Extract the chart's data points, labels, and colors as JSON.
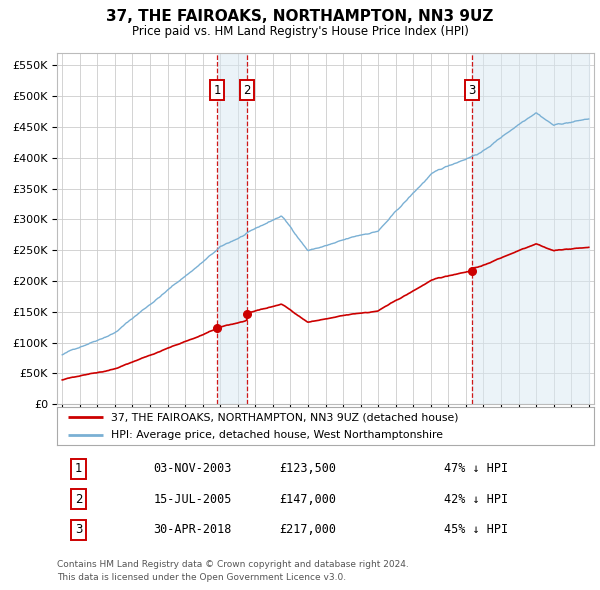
{
  "title": "37, THE FAIROAKS, NORTHAMPTON, NN3 9UZ",
  "subtitle": "Price paid vs. HM Land Registry's House Price Index (HPI)",
  "red_label": "37, THE FAIROAKS, NORTHAMPTON, NN3 9UZ (detached house)",
  "blue_label": "HPI: Average price, detached house, West Northamptonshire",
  "footer1": "Contains HM Land Registry data © Crown copyright and database right 2024.",
  "footer2": "This data is licensed under the Open Government Licence v3.0.",
  "transactions": [
    {
      "num": 1,
      "date": "03-NOV-2003",
      "price": "£123,500",
      "pct": "47% ↓ HPI",
      "year": 2003.84
    },
    {
      "num": 2,
      "date": "15-JUL-2005",
      "price": "£147,000",
      "pct": "42% ↓ HPI",
      "year": 2005.54
    },
    {
      "num": 3,
      "date": "30-APR-2018",
      "price": "£217,000",
      "pct": "45% ↓ HPI",
      "year": 2018.33
    }
  ],
  "transaction_marker_values": [
    123500,
    147000,
    217000
  ],
  "ylim": [
    0,
    570000
  ],
  "yticks": [
    0,
    50000,
    100000,
    150000,
    200000,
    250000,
    300000,
    350000,
    400000,
    450000,
    500000,
    550000
  ],
  "background_color": "#ffffff",
  "grid_color": "#cccccc",
  "red_color": "#cc0000",
  "blue_color": "#7ab0d4",
  "dashed_color": "#cc0000",
  "shade_color": "#d8e8f3"
}
